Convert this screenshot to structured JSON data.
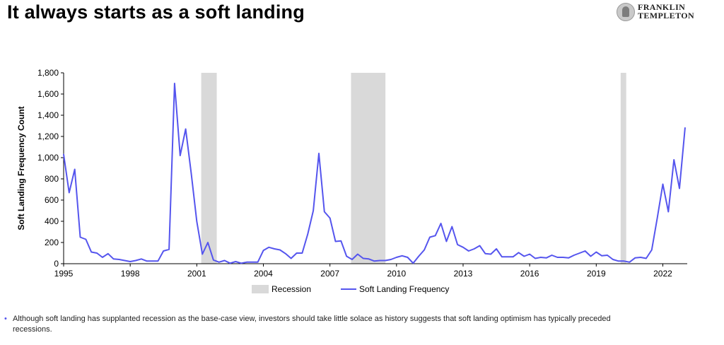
{
  "header": {
    "title": "It always starts as a soft landing"
  },
  "logo": {
    "line1": "FRANKLIN",
    "line2": "TEMPLETON",
    "icon": "franklin-portrait-icon"
  },
  "footnote": {
    "text": "Although soft landing has supplanted recession as the base-case view, investors should take little solace as history suggests that soft landing optimism has typically preceded recessions."
  },
  "colors": {
    "line": "#5555ee",
    "recession": "#d9d9d9",
    "axis": "#000000"
  },
  "chart_data": {
    "type": "line",
    "title": "",
    "xlabel": "",
    "ylabel": "Soft Landing Frequency Count",
    "ylim": [
      0,
      1800
    ],
    "xlim": [
      1995,
      2023.1
    ],
    "yticks": [
      0,
      200,
      400,
      600,
      800,
      1000,
      1200,
      1400,
      1600,
      1800
    ],
    "ytick_labels": [
      "0",
      "200",
      "400",
      "600",
      "800",
      "1,000",
      "1,200",
      "1,400",
      "1,600",
      "1,800"
    ],
    "xticks": [
      1995,
      1998,
      2001,
      2004,
      2007,
      2010,
      2013,
      2016,
      2019,
      2022
    ],
    "xtick_labels": [
      "1995",
      "1998",
      "2001",
      "2004",
      "2007",
      "2010",
      "2013",
      "2016",
      "2019",
      "2022"
    ],
    "grid": false,
    "legend": {
      "position": "bottom",
      "entries": [
        "Recession",
        "Soft Landing Frequency"
      ]
    },
    "recessions": [
      {
        "start": 2001.2,
        "end": 2001.9
      },
      {
        "start": 2007.95,
        "end": 2009.5
      },
      {
        "start": 2020.1,
        "end": 2020.35
      }
    ],
    "series": [
      {
        "name": "Soft Landing Frequency",
        "x": [
          1995.0,
          1995.25,
          1995.5,
          1995.75,
          1996.0,
          1996.25,
          1996.5,
          1996.75,
          1997.0,
          1997.25,
          1997.5,
          1997.75,
          1998.0,
          1998.25,
          1998.5,
          1998.75,
          1999.0,
          1999.25,
          1999.5,
          1999.75,
          2000.0,
          2000.25,
          2000.5,
          2000.75,
          2001.0,
          2001.25,
          2001.5,
          2001.75,
          2002.0,
          2002.25,
          2002.5,
          2002.75,
          2003.0,
          2003.25,
          2003.5,
          2003.75,
          2004.0,
          2004.25,
          2004.5,
          2004.75,
          2005.0,
          2005.25,
          2005.5,
          2005.75,
          2006.0,
          2006.25,
          2006.5,
          2006.75,
          2007.0,
          2007.25,
          2007.5,
          2007.75,
          2008.0,
          2008.25,
          2008.5,
          2008.75,
          2009.0,
          2009.25,
          2009.5,
          2009.75,
          2010.0,
          2010.25,
          2010.5,
          2010.75,
          2011.0,
          2011.25,
          2011.5,
          2011.75,
          2012.0,
          2012.25,
          2012.5,
          2012.75,
          2013.0,
          2013.25,
          2013.5,
          2013.75,
          2014.0,
          2014.25,
          2014.5,
          2014.75,
          2015.0,
          2015.25,
          2015.5,
          2015.75,
          2016.0,
          2016.25,
          2016.5,
          2016.75,
          2017.0,
          2017.25,
          2017.5,
          2017.75,
          2018.0,
          2018.25,
          2018.5,
          2018.75,
          2019.0,
          2019.25,
          2019.5,
          2019.75,
          2020.0,
          2020.25,
          2020.5,
          2020.75,
          2021.0,
          2021.25,
          2021.5,
          2021.75,
          2022.0,
          2022.25,
          2022.5,
          2022.75,
          2023.0
        ],
        "values": [
          1030,
          670,
          890,
          250,
          230,
          110,
          100,
          60,
          95,
          45,
          40,
          30,
          20,
          30,
          45,
          25,
          25,
          25,
          120,
          135,
          1700,
          1020,
          1270,
          850,
          400,
          90,
          200,
          35,
          15,
          30,
          5,
          20,
          5,
          15,
          15,
          15,
          125,
          155,
          140,
          130,
          95,
          50,
          100,
          100,
          280,
          500,
          1040,
          490,
          430,
          210,
          215,
          70,
          40,
          90,
          50,
          45,
          25,
          30,
          30,
          40,
          60,
          75,
          60,
          5,
          70,
          130,
          250,
          265,
          380,
          210,
          350,
          180,
          155,
          120,
          140,
          170,
          95,
          90,
          140,
          65,
          65,
          65,
          105,
          70,
          90,
          50,
          60,
          55,
          80,
          60,
          60,
          55,
          80,
          100,
          120,
          70,
          110,
          75,
          80,
          40,
          25,
          25,
          15,
          55,
          60,
          50,
          130,
          430,
          750,
          490,
          980,
          710,
          1280
        ]
      }
    ]
  }
}
